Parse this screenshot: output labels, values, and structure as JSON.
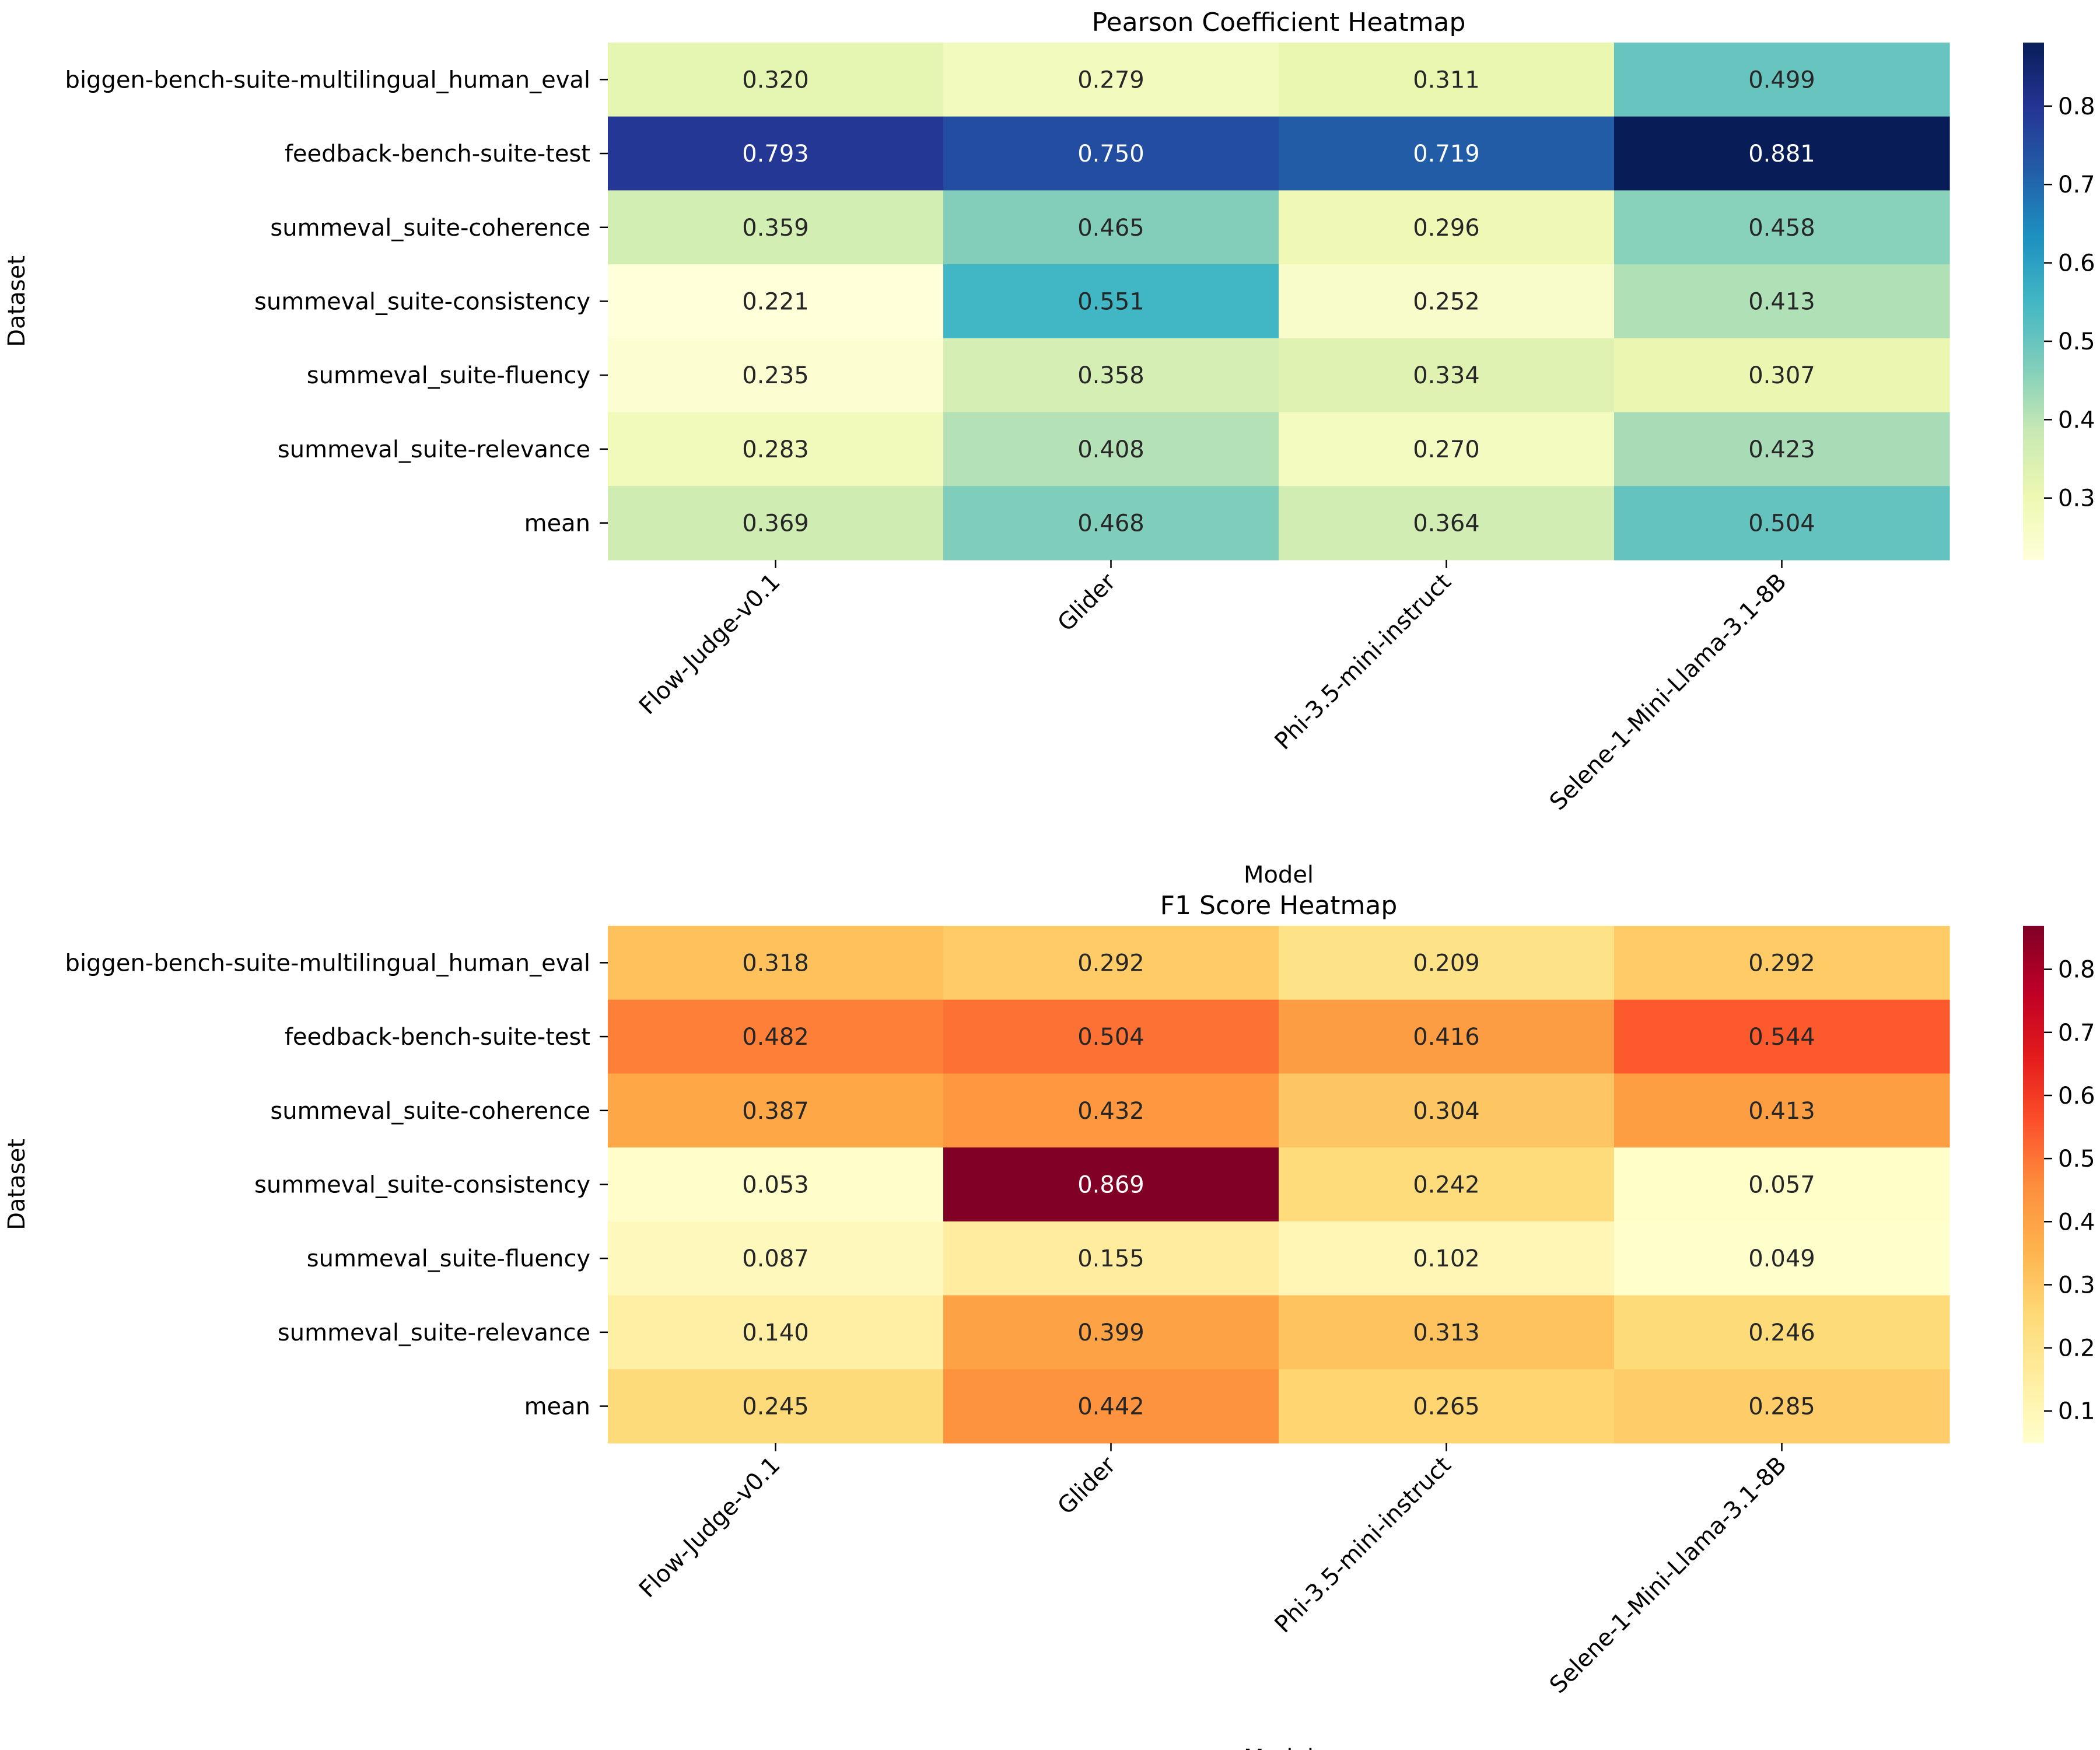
{
  "chart_data": [
    {
      "type": "heatmap",
      "title": "Pearson Coefficient Heatmap",
      "xlabel": "Model",
      "ylabel": "Dataset",
      "colormap": "YlGnBu",
      "colorbar_range": [
        0.221,
        0.881
      ],
      "colorbar_ticks": [
        "0.3",
        "0.4",
        "0.5",
        "0.6",
        "0.7",
        "0.8"
      ],
      "rows": [
        "biggen-bench-suite-multilingual_human_eval",
        "feedback-bench-suite-test",
        "summeval_suite-coherence",
        "summeval_suite-consistency",
        "summeval_suite-fluency",
        "summeval_suite-relevance",
        "mean"
      ],
      "columns": [
        "Flow-Judge-v0.1",
        "Glider",
        "Phi-3.5-mini-instruct",
        "Selene-1-Mini-Llama-3.1-8B"
      ],
      "values": [
        [
          0.32,
          0.279,
          0.311,
          0.499
        ],
        [
          0.793,
          0.75,
          0.719,
          0.881
        ],
        [
          0.359,
          0.465,
          0.296,
          0.458
        ],
        [
          0.221,
          0.551,
          0.252,
          0.413
        ],
        [
          0.235,
          0.358,
          0.334,
          0.307
        ],
        [
          0.283,
          0.408,
          0.27,
          0.423
        ],
        [
          0.369,
          0.468,
          0.364,
          0.504
        ]
      ],
      "labels": [
        [
          "0.320",
          "0.279",
          "0.311",
          "0.499"
        ],
        [
          "0.793",
          "0.750",
          "0.719",
          "0.881"
        ],
        [
          "0.359",
          "0.465",
          "0.296",
          "0.458"
        ],
        [
          "0.221",
          "0.551",
          "0.252",
          "0.413"
        ],
        [
          "0.235",
          "0.358",
          "0.334",
          "0.307"
        ],
        [
          "0.283",
          "0.408",
          "0.270",
          "0.423"
        ],
        [
          "0.369",
          "0.468",
          "0.364",
          "0.504"
        ]
      ]
    },
    {
      "type": "heatmap",
      "title": "F1 Score Heatmap",
      "xlabel": "Model",
      "ylabel": "Dataset",
      "colormap": "YlOrRd",
      "colorbar_range": [
        0.049,
        0.869
      ],
      "colorbar_ticks": [
        "0.1",
        "0.2",
        "0.3",
        "0.4",
        "0.5",
        "0.6",
        "0.7",
        "0.8"
      ],
      "rows": [
        "biggen-bench-suite-multilingual_human_eval",
        "feedback-bench-suite-test",
        "summeval_suite-coherence",
        "summeval_suite-consistency",
        "summeval_suite-fluency",
        "summeval_suite-relevance",
        "mean"
      ],
      "columns": [
        "Flow-Judge-v0.1",
        "Glider",
        "Phi-3.5-mini-instruct",
        "Selene-1-Mini-Llama-3.1-8B"
      ],
      "values": [
        [
          0.318,
          0.292,
          0.209,
          0.292
        ],
        [
          0.482,
          0.504,
          0.416,
          0.544
        ],
        [
          0.387,
          0.432,
          0.304,
          0.413
        ],
        [
          0.053,
          0.869,
          0.242,
          0.057
        ],
        [
          0.087,
          0.155,
          0.102,
          0.049
        ],
        [
          0.14,
          0.399,
          0.313,
          0.246
        ],
        [
          0.245,
          0.442,
          0.265,
          0.285
        ]
      ],
      "labels": [
        [
          "0.318",
          "0.292",
          "0.209",
          "0.292"
        ],
        [
          "0.482",
          "0.504",
          "0.416",
          "0.544"
        ],
        [
          "0.387",
          "0.432",
          "0.304",
          "0.413"
        ],
        [
          "0.053",
          "0.869",
          "0.242",
          "0.057"
        ],
        [
          "0.087",
          "0.155",
          "0.102",
          "0.049"
        ],
        [
          "0.140",
          "0.399",
          "0.313",
          "0.246"
        ],
        [
          "0.245",
          "0.442",
          "0.265",
          "0.285"
        ]
      ]
    }
  ]
}
